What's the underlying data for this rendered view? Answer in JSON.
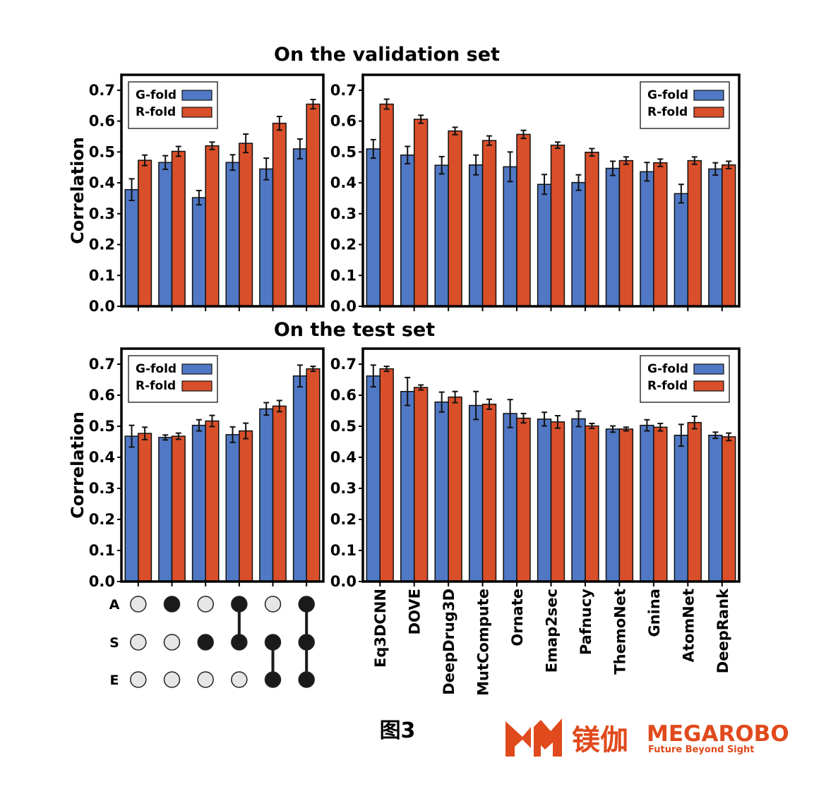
{
  "titles": {
    "top": "On the validation set",
    "bottom": "On the test set"
  },
  "caption": "图3",
  "logo": {
    "chinese": "镁伽",
    "english": "MEGAROBO",
    "tagline": "Future Beyond Sight",
    "color": "#e04a1c"
  },
  "colors": {
    "g_fold": "#5078c4",
    "r_fold": "#d94f2a",
    "dot_on": "#1a1a1a",
    "dot_off": "#e6e6e6"
  },
  "matrix": {
    "rows": [
      "A",
      "S",
      "E"
    ],
    "columns": [
      [
        false,
        false,
        false
      ],
      [
        true,
        false,
        false
      ],
      [
        false,
        true,
        false
      ],
      [
        true,
        true,
        false
      ],
      [
        false,
        true,
        true
      ],
      [
        true,
        true,
        true
      ]
    ]
  },
  "chart_data": [
    {
      "type": "bar",
      "panel": "validation-ablation",
      "ylabel": "Correlation",
      "ylim": [
        0,
        0.75
      ],
      "yticks": [
        "0.0",
        "0.1",
        "0.2",
        "0.3",
        "0.4",
        "0.5",
        "0.6",
        "0.7"
      ],
      "legend": "top-left",
      "categories": [
        "",
        "A",
        "S",
        "A+S",
        "S+E",
        "A+S+E"
      ],
      "series": [
        {
          "name": "G-fold",
          "values": [
            0.378,
            0.466,
            0.352,
            0.466,
            0.445,
            0.51
          ],
          "errors": [
            0.035,
            0.022,
            0.023,
            0.025,
            0.035,
            0.032
          ]
        },
        {
          "name": "R-fold",
          "values": [
            0.473,
            0.502,
            0.52,
            0.528,
            0.593,
            0.655
          ],
          "errors": [
            0.017,
            0.016,
            0.012,
            0.03,
            0.022,
            0.015
          ]
        }
      ]
    },
    {
      "type": "bar",
      "panel": "validation-methods",
      "ylim": [
        0,
        0.75
      ],
      "yticks": [
        "0.0",
        "0.1",
        "0.2",
        "0.3",
        "0.4",
        "0.5",
        "0.6",
        "0.7"
      ],
      "legend": "top-right",
      "categories": [
        "Eq3DCNN",
        "DOVE",
        "DeepDrug3D",
        "MutCompute",
        "Ornate",
        "Emap2sec",
        "Pafnucy",
        "ThemoNet",
        "Gnina",
        "AtomNet",
        "DeepRank"
      ],
      "series": [
        {
          "name": "G-fold",
          "values": [
            0.51,
            0.49,
            0.457,
            0.458,
            0.452,
            0.395,
            0.401,
            0.447,
            0.436,
            0.365,
            0.445
          ],
          "errors": [
            0.03,
            0.028,
            0.028,
            0.032,
            0.048,
            0.032,
            0.025,
            0.023,
            0.03,
            0.03,
            0.02
          ]
        },
        {
          "name": "R-fold",
          "values": [
            0.655,
            0.606,
            0.568,
            0.537,
            0.557,
            0.522,
            0.499,
            0.472,
            0.465,
            0.472,
            0.458
          ],
          "errors": [
            0.016,
            0.013,
            0.012,
            0.015,
            0.013,
            0.01,
            0.012,
            0.012,
            0.012,
            0.012,
            0.012
          ]
        }
      ]
    },
    {
      "type": "bar",
      "panel": "test-ablation",
      "ylabel": "Correlation",
      "ylim": [
        0,
        0.75
      ],
      "yticks": [
        "0.0",
        "0.1",
        "0.2",
        "0.3",
        "0.4",
        "0.5",
        "0.6",
        "0.7"
      ],
      "legend": "top-left",
      "categories": [
        "",
        "A",
        "S",
        "A+S",
        "S+E",
        "A+S+E"
      ],
      "series": [
        {
          "name": "G-fold",
          "values": [
            0.468,
            0.464,
            0.503,
            0.473,
            0.556,
            0.662
          ],
          "errors": [
            0.035,
            0.008,
            0.018,
            0.025,
            0.02,
            0.035
          ]
        },
        {
          "name": "R-fold",
          "values": [
            0.477,
            0.468,
            0.517,
            0.485,
            0.565,
            0.685
          ],
          "errors": [
            0.02,
            0.01,
            0.018,
            0.025,
            0.018,
            0.008
          ]
        }
      ]
    },
    {
      "type": "bar",
      "panel": "test-methods",
      "ylim": [
        0,
        0.75
      ],
      "yticks": [
        "0.0",
        "0.1",
        "0.2",
        "0.3",
        "0.4",
        "0.5",
        "0.6",
        "0.7"
      ],
      "legend": "top-right",
      "categories": [
        "Eq3DCNN",
        "DOVE",
        "DeepDrug3D",
        "MutCompute",
        "Ornate",
        "Emap2sec",
        "Pafnucy",
        "ThemoNet",
        "Gnina",
        "AtomNet",
        "DeepRank"
      ],
      "series": [
        {
          "name": "G-fold",
          "values": [
            0.662,
            0.612,
            0.578,
            0.567,
            0.541,
            0.523,
            0.524,
            0.491,
            0.503,
            0.471,
            0.471
          ],
          "errors": [
            0.035,
            0.045,
            0.032,
            0.045,
            0.045,
            0.022,
            0.025,
            0.01,
            0.018,
            0.035,
            0.01
          ]
        },
        {
          "name": "R-fold",
          "values": [
            0.685,
            0.625,
            0.594,
            0.571,
            0.526,
            0.514,
            0.501,
            0.491,
            0.497,
            0.512,
            0.466
          ],
          "errors": [
            0.008,
            0.008,
            0.018,
            0.016,
            0.015,
            0.02,
            0.008,
            0.006,
            0.012,
            0.02,
            0.012
          ]
        }
      ]
    }
  ]
}
